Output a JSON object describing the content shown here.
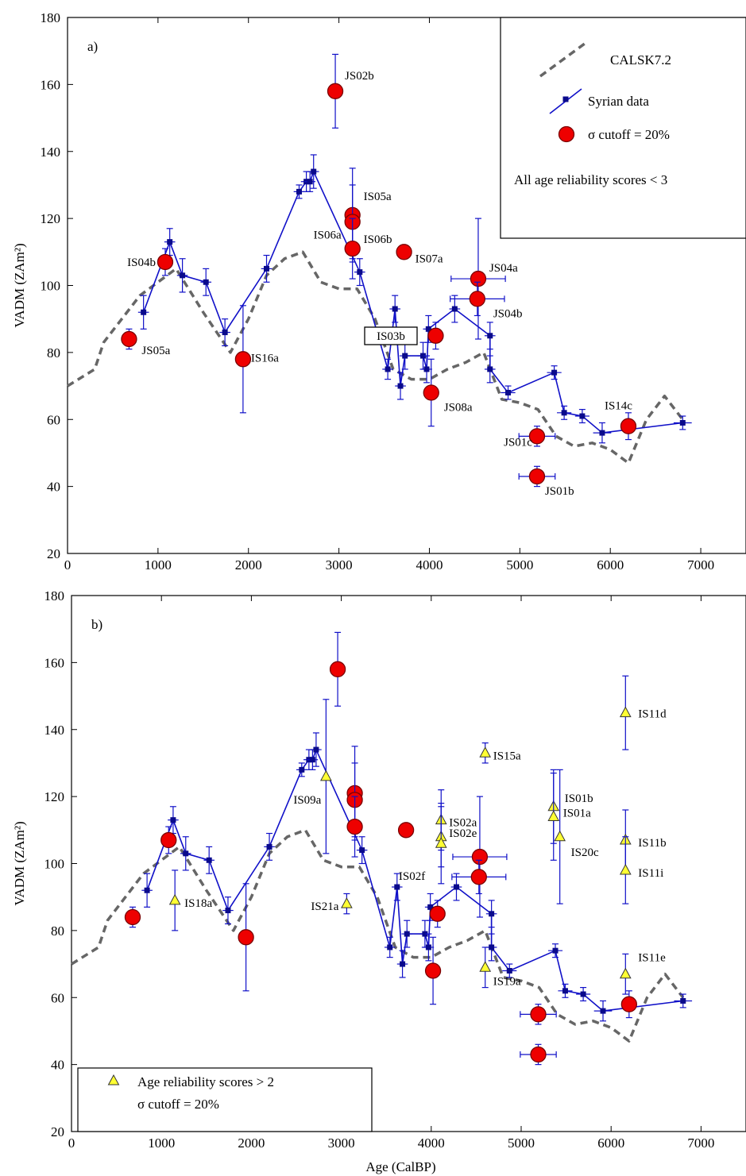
{
  "chart_data": [
    {
      "panel": "a)",
      "type": "scatter",
      "xlabel": "",
      "ylabel": "VADM (ZAm²)",
      "xlim": [
        0,
        7500
      ],
      "ylim": [
        20,
        180
      ],
      "x_ticks": [
        "0",
        "1000",
        "2000",
        "3000",
        "4000",
        "5000",
        "6000",
        "7000"
      ],
      "y_ticks": [
        "20",
        "40",
        "60",
        "80",
        "100",
        "120",
        "140",
        "160",
        "180"
      ],
      "legend": {
        "placement": "top-right",
        "entries": [
          "CALSK7.2",
          "Syrian data",
          "σ cutoff = 20%"
        ],
        "note": "All age reliability scores < 3"
      },
      "series": [
        {
          "name": "CALSK7.2",
          "style": "dashed-gray",
          "x": [
            0,
            300,
            400,
            600,
            800,
            1000,
            1200,
            1500,
            1800,
            2000,
            2200,
            2400,
            2600,
            2800,
            3000,
            3200,
            3400,
            3600,
            3800,
            4000,
            4200,
            4400,
            4600,
            4800,
            5000,
            5200,
            5400,
            5600,
            5800,
            6000,
            6200,
            6400,
            6600,
            6800
          ],
          "y": [
            70,
            75,
            83,
            90,
            97,
            101,
            105,
            92,
            80,
            90,
            103,
            108,
            110,
            101,
            99,
            99,
            90,
            75,
            72,
            72,
            75,
            77,
            80,
            66,
            65,
            63,
            55,
            52,
            53,
            51,
            47,
            60,
            67,
            60
          ]
        },
        {
          "name": "Syrian data",
          "style": "blue-squares-connected",
          "points": [
            {
              "x": 840,
              "y": 92,
              "xe": 60,
              "ye": 5
            },
            {
              "x": 1130,
              "y": 113,
              "xe": 60,
              "ye": 4
            },
            {
              "x": 1270,
              "y": 103,
              "xe": 60,
              "ye": 5
            },
            {
              "x": 1530,
              "y": 101,
              "xe": 60,
              "ye": 4
            },
            {
              "x": 1740,
              "y": 86,
              "xe": 60,
              "ye": 4
            },
            {
              "x": 2200,
              "y": 105,
              "xe": 60,
              "ye": 4
            },
            {
              "x": 2560,
              "y": 128,
              "xe": 60,
              "ye": 2
            },
            {
              "x": 2640,
              "y": 131,
              "xe": 60,
              "ye": 3
            },
            {
              "x": 2680,
              "y": 131,
              "xe": 60,
              "ye": 3
            },
            {
              "x": 2720,
              "y": 134,
              "xe": 60,
              "ye": 5
            },
            {
              "x": 3230,
              "y": 104,
              "xe": 60,
              "ye": 4
            },
            {
              "x": 3540,
              "y": 75,
              "xe": 60,
              "ye": 3
            },
            {
              "x": 3620,
              "y": 93,
              "xe": 60,
              "ye": 4
            },
            {
              "x": 3680,
              "y": 70,
              "xe": 60,
              "ye": 4
            },
            {
              "x": 3730,
              "y": 79,
              "xe": 60,
              "ye": 4
            },
            {
              "x": 3930,
              "y": 79,
              "xe": 60,
              "ye": 4
            },
            {
              "x": 3970,
              "y": 75,
              "xe": 60,
              "ye": 4
            },
            {
              "x": 3990,
              "y": 87,
              "xe": 60,
              "ye": 4
            },
            {
              "x": 4280,
              "y": 93,
              "xe": 60,
              "ye": 4
            },
            {
              "x": 4670,
              "y": 85,
              "xe": 60,
              "ye": 4
            },
            {
              "x": 4670,
              "y": 75,
              "xe": 60,
              "ye": 4
            },
            {
              "x": 4870,
              "y": 68,
              "xe": 80,
              "ye": 2
            },
            {
              "x": 5380,
              "y": 74,
              "xe": 80,
              "ye": 2
            },
            {
              "x": 5490,
              "y": 62,
              "xe": 80,
              "ye": 2
            },
            {
              "x": 5690,
              "y": 61,
              "xe": 80,
              "ye": 2
            },
            {
              "x": 5910,
              "y": 56,
              "xe": 100,
              "ye": 3
            },
            {
              "x": 6800,
              "y": 59,
              "xe": 100,
              "ye": 2
            }
          ]
        },
        {
          "name": "σ cutoff = 20%",
          "style": "red-circles",
          "points": [
            {
              "x": 680,
              "y": 84,
              "xe": 0,
              "ye": 3,
              "label": "JS05a"
            },
            {
              "x": 1080,
              "y": 107,
              "xe": 60,
              "ye": 4,
              "label": "IS04b"
            },
            {
              "x": 1940,
              "y": 78,
              "xe": 0,
              "ye": 16,
              "label": "IS16a"
            },
            {
              "x": 2960,
              "y": 158,
              "xe": 60,
              "ye": 11,
              "label": "JS02b"
            },
            {
              "x": 3150,
              "y": 121,
              "xe": 0,
              "ye": 14,
              "label": "IS05a"
            },
            {
              "x": 3150,
              "y": 119,
              "xe": 0,
              "ye": 11,
              "label": "IS06a"
            },
            {
              "x": 3150,
              "y": 111,
              "xe": 0,
              "ye": 9,
              "label": "IS06b"
            },
            {
              "x": 3720,
              "y": 110,
              "xe": 60,
              "ye": 2,
              "label": "IS07a"
            },
            {
              "x": 4020,
              "y": 68,
              "xe": 0,
              "ye": 10,
              "label": "JS08a"
            },
            {
              "x": 4070,
              "y": 85,
              "xe": 0,
              "ye": 4,
              "label": "IS03b"
            },
            {
              "x": 4540,
              "y": 102,
              "xe": 300,
              "ye": 18,
              "label": "JS04a"
            },
            {
              "x": 4530,
              "y": 96,
              "xe": 300,
              "ye": 5,
              "label": "JS04b"
            },
            {
              "x": 5190,
              "y": 55,
              "xe": 200,
              "ye": 3,
              "label": "JS01c"
            },
            {
              "x": 5190,
              "y": 43,
              "xe": 200,
              "ye": 3,
              "label": "JS01b"
            },
            {
              "x": 6200,
              "y": 58,
              "xe": 0,
              "ye": 4,
              "label": "IS14c"
            }
          ]
        }
      ]
    },
    {
      "panel": "b)",
      "type": "scatter",
      "xlabel": "Age (CalBP)",
      "ylabel": "VADM (ZAm²)",
      "xlim": [
        0,
        7500
      ],
      "ylim": [
        20,
        180
      ],
      "x_ticks": [
        "0",
        "1000",
        "2000",
        "3000",
        "4000",
        "5000",
        "6000",
        "7000"
      ],
      "y_ticks": [
        "20",
        "40",
        "60",
        "80",
        "100",
        "120",
        "140",
        "160",
        "180"
      ],
      "legend": {
        "placement": "bottom-left",
        "entries": [
          "Age reliability scores > 2",
          "σ cutoff = 20%"
        ]
      },
      "series": [
        {
          "name": "CALSK7.2",
          "style": "dashed-gray",
          "x": [
            0,
            300,
            400,
            600,
            800,
            1000,
            1200,
            1500,
            1800,
            2000,
            2200,
            2400,
            2600,
            2800,
            3000,
            3200,
            3400,
            3600,
            3800,
            4000,
            4200,
            4400,
            4600,
            4800,
            5000,
            5200,
            5400,
            5600,
            5800,
            6000,
            6200,
            6400,
            6600,
            6800
          ],
          "y": [
            70,
            75,
            83,
            90,
            97,
            101,
            105,
            92,
            80,
            90,
            103,
            108,
            110,
            101,
            99,
            99,
            90,
            75,
            72,
            72,
            75,
            77,
            80,
            66,
            65,
            63,
            55,
            52,
            53,
            51,
            47,
            60,
            67,
            60
          ]
        },
        {
          "name": "Syrian data",
          "style": "blue-squares-connected",
          "points": [
            {
              "x": 840,
              "y": 92,
              "xe": 60,
              "ye": 5
            },
            {
              "x": 1130,
              "y": 113,
              "xe": 60,
              "ye": 4
            },
            {
              "x": 1270,
              "y": 103,
              "xe": 60,
              "ye": 5
            },
            {
              "x": 1530,
              "y": 101,
              "xe": 60,
              "ye": 4
            },
            {
              "x": 1740,
              "y": 86,
              "xe": 60,
              "ye": 4
            },
            {
              "x": 2200,
              "y": 105,
              "xe": 60,
              "ye": 4
            },
            {
              "x": 2560,
              "y": 128,
              "xe": 60,
              "ye": 2
            },
            {
              "x": 2640,
              "y": 131,
              "xe": 60,
              "ye": 3
            },
            {
              "x": 2680,
              "y": 131,
              "xe": 60,
              "ye": 3
            },
            {
              "x": 2720,
              "y": 134,
              "xe": 60,
              "ye": 5
            },
            {
              "x": 3230,
              "y": 104,
              "xe": 60,
              "ye": 4
            },
            {
              "x": 3540,
              "y": 75,
              "xe": 60,
              "ye": 3
            },
            {
              "x": 3620,
              "y": 93,
              "xe": 60,
              "ye": 4
            },
            {
              "x": 3680,
              "y": 70,
              "xe": 60,
              "ye": 4
            },
            {
              "x": 3730,
              "y": 79,
              "xe": 60,
              "ye": 4
            },
            {
              "x": 3930,
              "y": 79,
              "xe": 60,
              "ye": 4
            },
            {
              "x": 3970,
              "y": 75,
              "xe": 60,
              "ye": 4
            },
            {
              "x": 3990,
              "y": 87,
              "xe": 60,
              "ye": 4
            },
            {
              "x": 4280,
              "y": 93,
              "xe": 60,
              "ye": 4
            },
            {
              "x": 4670,
              "y": 85,
              "xe": 60,
              "ye": 4
            },
            {
              "x": 4670,
              "y": 75,
              "xe": 60,
              "ye": 4
            },
            {
              "x": 4870,
              "y": 68,
              "xe": 80,
              "ye": 2
            },
            {
              "x": 5380,
              "y": 74,
              "xe": 80,
              "ye": 2
            },
            {
              "x": 5490,
              "y": 62,
              "xe": 80,
              "ye": 2
            },
            {
              "x": 5690,
              "y": 61,
              "xe": 80,
              "ye": 2
            },
            {
              "x": 5910,
              "y": 56,
              "xe": 100,
              "ye": 3
            },
            {
              "x": 6800,
              "y": 59,
              "xe": 100,
              "ye": 2
            }
          ]
        },
        {
          "name": "σ cutoff = 20%",
          "style": "red-circles",
          "points": [
            {
              "x": 680,
              "y": 84,
              "xe": 0,
              "ye": 3
            },
            {
              "x": 1080,
              "y": 107,
              "xe": 60,
              "ye": 4
            },
            {
              "x": 1940,
              "y": 78,
              "xe": 0,
              "ye": 16
            },
            {
              "x": 2960,
              "y": 158,
              "xe": 60,
              "ye": 11
            },
            {
              "x": 3150,
              "y": 121,
              "xe": 0,
              "ye": 14
            },
            {
              "x": 3150,
              "y": 119,
              "xe": 0,
              "ye": 11
            },
            {
              "x": 3150,
              "y": 111,
              "xe": 0,
              "ye": 9
            },
            {
              "x": 3720,
              "y": 110,
              "xe": 60,
              "ye": 2
            },
            {
              "x": 4020,
              "y": 68,
              "xe": 0,
              "ye": 10
            },
            {
              "x": 4070,
              "y": 85,
              "xe": 0,
              "ye": 4
            },
            {
              "x": 4540,
              "y": 102,
              "xe": 300,
              "ye": 18
            },
            {
              "x": 4530,
              "y": 96,
              "xe": 300,
              "ye": 5
            },
            {
              "x": 5190,
              "y": 55,
              "xe": 200,
              "ye": 3
            },
            {
              "x": 5190,
              "y": 43,
              "xe": 200,
              "ye": 3
            },
            {
              "x": 6200,
              "y": 58,
              "xe": 0,
              "ye": 4
            }
          ]
        },
        {
          "name": "Age reliability scores > 2",
          "style": "yellow-triangles",
          "points": [
            {
              "x": 1150,
              "y": 89,
              "xe": 0,
              "ye": 9,
              "label": "IS18a"
            },
            {
              "x": 2830,
              "y": 126,
              "xe": 0,
              "ye": 23,
              "label": "IS09a"
            },
            {
              "x": 3060,
              "y": 88,
              "xe": 0,
              "ye": 3,
              "label": "IS21a"
            },
            {
              "x": 4110,
              "y": 113,
              "xe": 0,
              "ye": 9,
              "label": "IS02a"
            },
            {
              "x": 4110,
              "y": 108,
              "xe": 0,
              "ye": 9,
              "label": "IS02e"
            },
            {
              "x": 4110,
              "y": 106,
              "xe": 0,
              "ye": 12,
              "label": "IS02f"
            },
            {
              "x": 4600,
              "y": 133,
              "xe": 0,
              "ye": 3,
              "label": "IS15a"
            },
            {
              "x": 4600,
              "y": 69,
              "xe": 0,
              "ye": 6,
              "label": "IS19a"
            },
            {
              "x": 5360,
              "y": 117,
              "xe": 0,
              "ye": 11,
              "label": "IS01b"
            },
            {
              "x": 5360,
              "y": 114,
              "xe": 0,
              "ye": 13,
              "label": "IS01a"
            },
            {
              "x": 5430,
              "y": 108,
              "xe": 0,
              "ye": 20,
              "label": "IS20c"
            },
            {
              "x": 6160,
              "y": 145,
              "xe": 0,
              "ye": 11,
              "label": "IS11d"
            },
            {
              "x": 6160,
              "y": 107,
              "xe": 0,
              "ye": 9,
              "label": "IS11b"
            },
            {
              "x": 6160,
              "y": 98,
              "xe": 0,
              "ye": 10,
              "label": "IS11i"
            },
            {
              "x": 6160,
              "y": 67,
              "xe": 0,
              "ye": 6,
              "label": "IS11e"
            }
          ]
        }
      ]
    }
  ],
  "colors": {
    "calsk": "#666666",
    "syrian": "#1010c8",
    "syrian_marker": "#0a0a8c",
    "circle_fill": "#ee0000",
    "circle_stroke": "#7a0000",
    "triangle_fill": "#ffff33",
    "triangle_stroke": "#333333"
  }
}
